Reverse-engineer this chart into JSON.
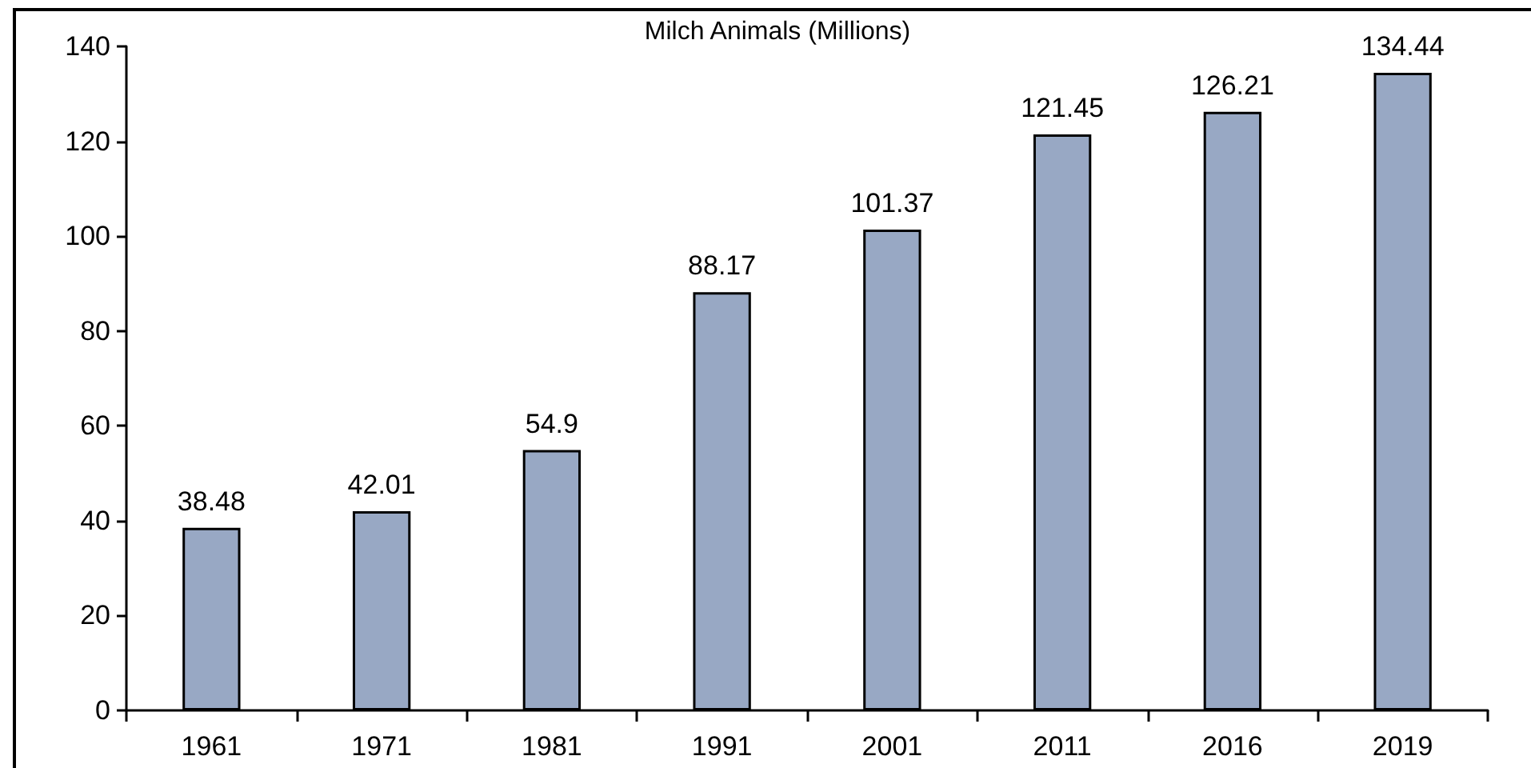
{
  "chart_data": {
    "type": "bar",
    "title": "Milch Animals (Millions)",
    "categories": [
      "1961",
      "1971",
      "1981",
      "1991",
      "2001",
      "2011",
      "2016",
      "2019"
    ],
    "values": [
      38.48,
      42.01,
      54.9,
      88.17,
      101.37,
      121.45,
      126.21,
      134.44
    ],
    "color": "#98a8c4",
    "ylim": [
      0,
      140
    ],
    "yticks": [
      0,
      20,
      40,
      60,
      80,
      100,
      120,
      140
    ],
    "data_labels": true,
    "grid": false
  }
}
